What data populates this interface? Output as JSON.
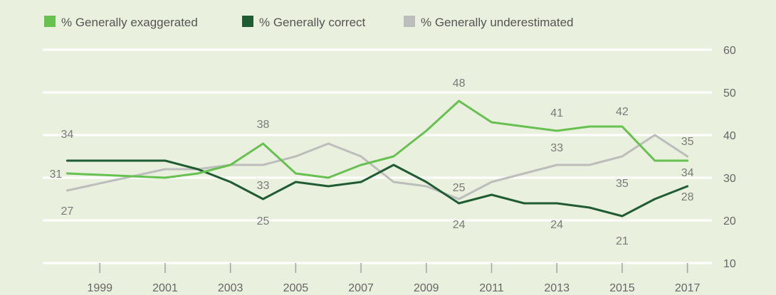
{
  "chart_data": {
    "type": "line",
    "title": "",
    "xlabel": "",
    "ylabel": "",
    "ylim": [
      10,
      60
    ],
    "yticks": [
      10,
      20,
      30,
      40,
      50,
      60
    ],
    "yaxis_side": "right",
    "xlim": [
      1997.25,
      2017.75
    ],
    "xticks": [
      1999,
      2001,
      2003,
      2005,
      2007,
      2009,
      2011,
      2013,
      2015,
      2017
    ],
    "grid": "horizontal",
    "legend_position": "top-left",
    "series": [
      {
        "name": "% Generally exaggerated",
        "color": "#66c150",
        "x": [
          1998,
          2001,
          2002,
          2003,
          2004,
          2005,
          2006,
          2007,
          2008,
          2009,
          2010,
          2011,
          2012,
          2013,
          2014,
          2015,
          2016,
          2017
        ],
        "y": [
          31,
          30,
          31,
          33,
          38,
          31,
          30,
          33,
          35,
          41,
          48,
          43,
          42,
          41,
          42,
          42,
          34,
          34
        ]
      },
      {
        "name": "% Generally correct",
        "color": "#1f5b33",
        "x": [
          1998,
          2001,
          2002,
          2003,
          2004,
          2005,
          2006,
          2007,
          2008,
          2009,
          2010,
          2011,
          2012,
          2013,
          2014,
          2015,
          2016,
          2017
        ],
        "y": [
          34,
          34,
          32,
          29,
          25,
          29,
          28,
          29,
          33,
          29,
          24,
          26,
          24,
          24,
          23,
          21,
          25,
          28
        ]
      },
      {
        "name": "% Generally underestimated",
        "color": "#bdbdbd",
        "x": [
          1998,
          2001,
          2002,
          2003,
          2004,
          2005,
          2006,
          2007,
          2008,
          2009,
          2010,
          2011,
          2012,
          2013,
          2014,
          2015,
          2016,
          2017
        ],
        "y": [
          27,
          32,
          32,
          33,
          33,
          35,
          38,
          35,
          29,
          28,
          25,
          29,
          31,
          33,
          33,
          35,
          40,
          35
        ]
      }
    ],
    "annotations": [
      {
        "text": "34",
        "x": 1998.0,
        "y": 34,
        "dy": -32
      },
      {
        "text": "31",
        "x": 1997.65,
        "y": 31,
        "dy": 6
      },
      {
        "text": "27",
        "x": 1998.0,
        "y": 27,
        "dy": 34
      },
      {
        "text": "38",
        "x": 2004.0,
        "y": 38,
        "dy": -22
      },
      {
        "text": "33",
        "x": 2004.0,
        "y": 33,
        "dy": 34
      },
      {
        "text": "25",
        "x": 2004.0,
        "y": 25,
        "dy": 36
      },
      {
        "text": "48",
        "x": 2010.0,
        "y": 48,
        "dy": -20
      },
      {
        "text": "25",
        "x": 2010.0,
        "y": 25,
        "dy": -11
      },
      {
        "text": "24",
        "x": 2010.0,
        "y": 24,
        "dy": 35
      },
      {
        "text": "41",
        "x": 2013.0,
        "y": 41,
        "dy": -20
      },
      {
        "text": "33",
        "x": 2013.0,
        "y": 33,
        "dy": -19
      },
      {
        "text": "24",
        "x": 2013.0,
        "y": 24,
        "dy": 35
      },
      {
        "text": "42",
        "x": 2015.0,
        "y": 42,
        "dy": -16
      },
      {
        "text": "35",
        "x": 2015.0,
        "y": 35,
        "dy": 43
      },
      {
        "text": "21",
        "x": 2015.0,
        "y": 21,
        "dy": 40
      },
      {
        "text": "35",
        "x": 2017.0,
        "y": 35,
        "dy": -16
      },
      {
        "text": "34",
        "x": 2017.0,
        "y": 34,
        "dy": 22
      },
      {
        "text": "28",
        "x": 2017.0,
        "y": 28,
        "dy": 20
      }
    ]
  }
}
